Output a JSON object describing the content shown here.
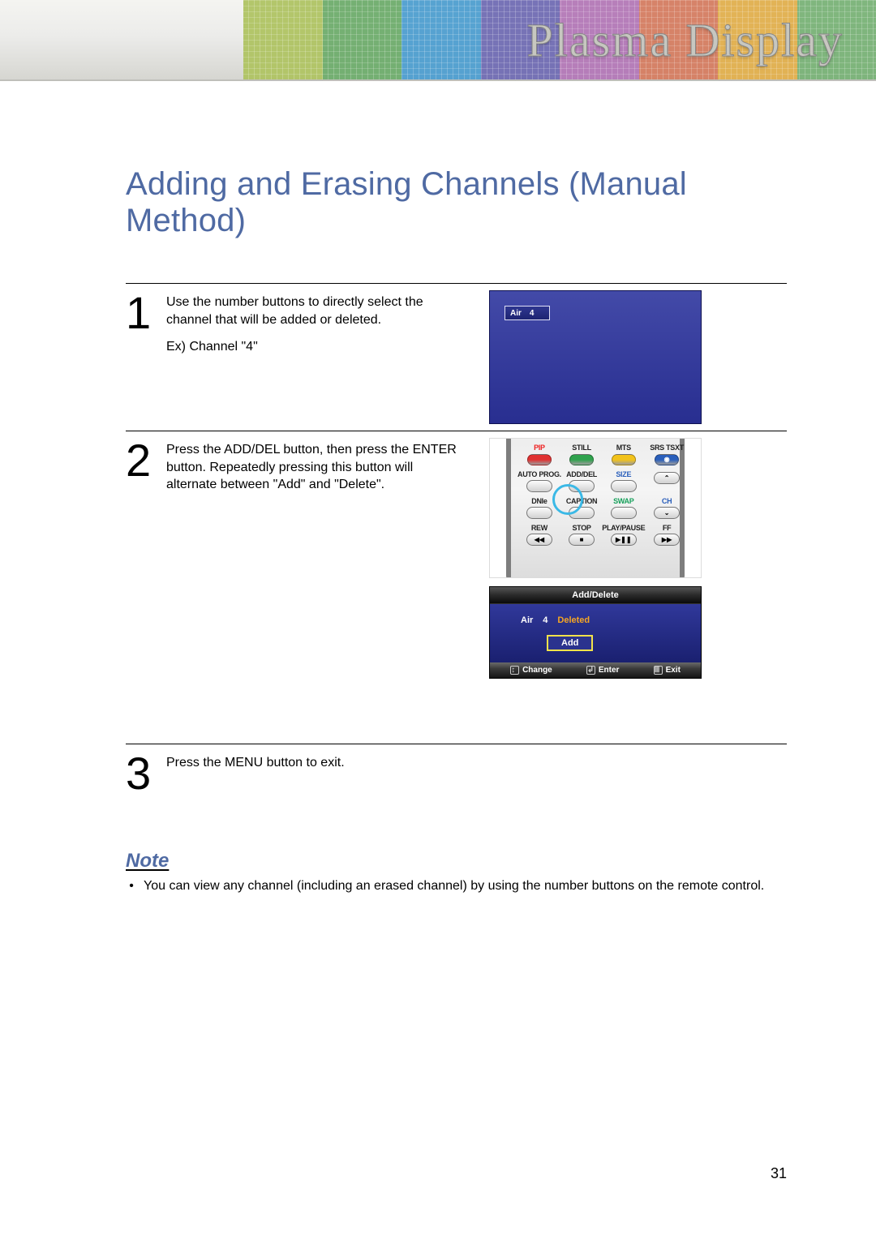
{
  "colors": {
    "banner_gradient_top": "#f4f4f1",
    "banner_gradient_bottom": "#d6d6d1",
    "rainbow": [
      "#b0c464",
      "#6fad6d",
      "#4f9fd0",
      "#716db4",
      "#b479b8",
      "#d57e62",
      "#e2b04e",
      "#7ab378"
    ],
    "title_blue": "#4f6aa3",
    "tv_blue_top": "#434aa8",
    "tv_blue_bottom": "#282e90",
    "osd_highlight_yellow": "#f2e24a",
    "osd_status_orange": "#f5a623",
    "ring_highlight": "#3bb9e6"
  },
  "banner": {
    "title": "Plasma Display"
  },
  "page_title": "Adding and Erasing Channels (Manual Method)",
  "steps": [
    {
      "num": "1",
      "paragraphs": [
        "Use the number buttons to directly select the channel that will be added or deleted.",
        "Ex) Channel \"4\""
      ]
    },
    {
      "num": "2",
      "paragraphs": [
        "Press the ADD/DEL button, then press the ENTER button. Repeatedly pressing this button will alternate between \"Add\" and \"Delete\"."
      ]
    },
    {
      "num": "3",
      "paragraphs": [
        "Press the MENU button to exit."
      ]
    }
  ],
  "tv_chip": {
    "source": "Air",
    "channel": "4"
  },
  "remote": {
    "rows": [
      [
        {
          "label": "PIP",
          "label_color": "red",
          "btn_color": "#e03131"
        },
        {
          "label": "STILL",
          "label_color": "",
          "btn_color": "#2fa24d"
        },
        {
          "label": "MTS",
          "label_color": "",
          "btn_color": "#f2c21a"
        },
        {
          "label": "SRS TSXT",
          "label_color": "",
          "btn_color": "#2a5fbb",
          "eye_icon": true
        }
      ],
      [
        {
          "label": "AUTO PROG.",
          "label_color": ""
        },
        {
          "label": "ADD/DEL",
          "label_color": ""
        },
        {
          "label": "SIZE",
          "label_color": "blue"
        },
        {
          "label": "",
          "label_color": "",
          "glyph": "⌃"
        }
      ],
      [
        {
          "label": "DNIe",
          "label_color": ""
        },
        {
          "label": "CAPTION",
          "label_color": ""
        },
        {
          "label": "SWAP",
          "label_color": "green"
        },
        {
          "label": "CH",
          "label_color": "blue",
          "glyph": "⌄"
        }
      ],
      [
        {
          "label": "REW",
          "label_color": "",
          "glyph": "◀◀"
        },
        {
          "label": "STOP",
          "label_color": "",
          "glyph": "■"
        },
        {
          "label": "PLAY/PAUSE",
          "label_color": "",
          "glyph": "▶❚❚"
        },
        {
          "label": "FF",
          "label_color": "",
          "glyph": "▶▶"
        }
      ]
    ]
  },
  "osd": {
    "title": "Add/Delete",
    "source": "Air",
    "channel": "4",
    "status": "Deleted",
    "button": "Add",
    "footer": [
      {
        "icon": "↕",
        "label": "Change"
      },
      {
        "icon": "↲",
        "label": "Enter"
      },
      {
        "icon": "Ⅲ",
        "label": "Exit"
      }
    ]
  },
  "note": {
    "heading": "Note",
    "text": "You can view any channel (including an erased channel) by using the number buttons on the remote control."
  },
  "page_number": "31"
}
